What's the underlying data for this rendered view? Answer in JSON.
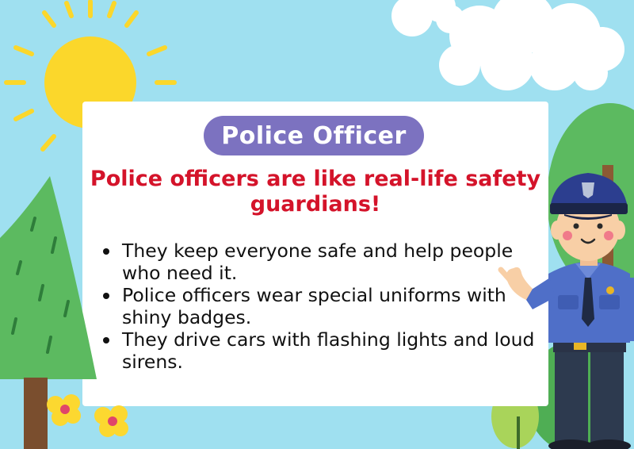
{
  "colors": {
    "sky": "#9fe0f0",
    "sun": "#fbd72b",
    "card": "#ffffff",
    "badge": "#7c72c0",
    "headline": "#d4132a",
    "tree": "#5cba60",
    "uniform": "#4f6fc8"
  },
  "title_badge": {
    "label": "Police Officer"
  },
  "headline": "Police officers are like real-life safety guardians!",
  "facts": [
    "They keep everyone safe and help people who need it.",
    "Police officers wear special uniforms with shiny badges.",
    "They drive cars with flashing lights and loud sirens."
  ],
  "decorations": [
    "sun-icon",
    "cloud-icon",
    "pine-tree-icon",
    "bush-tree-icon",
    "flower-icon",
    "police-officer-illustration"
  ]
}
